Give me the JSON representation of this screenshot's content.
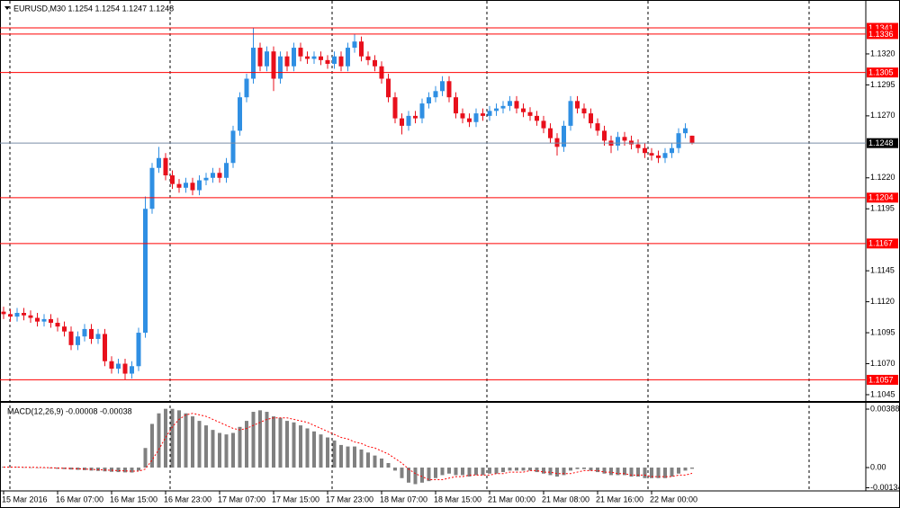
{
  "chart_data": [
    {
      "type": "candlestick",
      "title": "EURUSD,M30  1.1254 1.1254 1.1247 1.1248",
      "categories": [
        "15 Mar 2016",
        null,
        null,
        null,
        null,
        null,
        null,
        null,
        "16 Mar 07:00",
        null,
        null,
        null,
        null,
        null,
        null,
        null,
        "16 Mar 15:00",
        null,
        null,
        null,
        null,
        null,
        null,
        null,
        "16 Mar 23:00",
        null,
        null,
        null,
        null,
        null,
        null,
        null,
        "17 Mar 07:00",
        null,
        null,
        null,
        null,
        null,
        null,
        null,
        "17 Mar 15:00",
        null,
        null,
        null,
        null,
        null,
        null,
        null,
        "17 Mar 23:00",
        null,
        null,
        null,
        null,
        null,
        null,
        null,
        "18 Mar 07:00",
        null,
        null,
        null,
        null,
        null,
        null,
        null,
        "18 Mar 15:00",
        null,
        null,
        null,
        null,
        null,
        null,
        null,
        "21 Mar 00:00",
        null,
        null,
        null,
        null,
        null,
        null,
        null,
        "21 Mar 08:00",
        null,
        null,
        null,
        null,
        null,
        null,
        null,
        "21 Mar 16:00",
        null,
        null,
        null,
        null,
        null,
        null,
        null,
        "22 Mar 00:00",
        null,
        null,
        null,
        null,
        null,
        null
      ],
      "open": [
        1.1112,
        1.111,
        1.1108,
        1.1111,
        1.1109,
        1.1107,
        1.1104,
        1.1106,
        1.1103,
        1.11,
        1.1096,
        1.1085,
        1.1092,
        1.1098,
        1.109,
        1.1094,
        1.1072,
        1.1066,
        1.107,
        1.1062,
        1.1068,
        1.1095,
        1.1195,
        1.1228,
        1.1236,
        1.1222,
        1.1215,
        1.1212,
        1.1216,
        1.121,
        1.1218,
        1.122,
        1.1224,
        1.122,
        1.1232,
        1.1258,
        1.1285,
        1.13,
        1.1325,
        1.131,
        1.1322,
        1.13,
        1.1318,
        1.131,
        1.1325,
        1.1318,
        1.1316,
        1.1318,
        1.1315,
        1.1312,
        1.1318,
        1.131,
        1.1325,
        1.133,
        1.1318,
        1.1315,
        1.131,
        1.13,
        1.1285,
        1.1268,
        1.1262,
        1.127,
        1.1268,
        1.128,
        1.1285,
        1.129,
        1.1298,
        1.1285,
        1.1272,
        1.1268,
        1.1265,
        1.1272,
        1.127,
        1.1274,
        1.1276,
        1.1278,
        1.1282,
        1.1276,
        1.1273,
        1.127,
        1.1266,
        1.126,
        1.1252,
        1.1245,
        1.1262,
        1.1282,
        1.1276,
        1.1272,
        1.1264,
        1.1258,
        1.125,
        1.1246,
        1.1253,
        1.125,
        1.1247,
        1.1244,
        1.124,
        1.1238,
        1.1236,
        1.124,
        1.1244,
        1.1256,
        1.1254
      ],
      "high": [
        1.1116,
        1.1114,
        1.1115,
        1.1115,
        1.1113,
        1.1111,
        1.111,
        1.111,
        1.1107,
        1.1104,
        1.11,
        1.1096,
        1.1102,
        1.1102,
        1.1098,
        1.1098,
        1.1076,
        1.1074,
        1.1074,
        1.1072,
        1.1099,
        1.1205,
        1.1232,
        1.1245,
        1.124,
        1.1226,
        1.1219,
        1.122,
        1.122,
        1.1222,
        1.1224,
        1.1228,
        1.1228,
        1.1236,
        1.1262,
        1.1289,
        1.1304,
        1.1341,
        1.1329,
        1.1326,
        1.1326,
        1.1322,
        1.1322,
        1.1329,
        1.1329,
        1.1322,
        1.1322,
        1.1322,
        1.1319,
        1.1322,
        1.1322,
        1.1329,
        1.1336,
        1.1334,
        1.1322,
        1.1319,
        1.1314,
        1.1304,
        1.1289,
        1.1272,
        1.1274,
        1.1274,
        1.1284,
        1.1289,
        1.1294,
        1.1302,
        1.1302,
        1.1289,
        1.1276,
        1.1272,
        1.1276,
        1.1276,
        1.1278,
        1.128,
        1.1282,
        1.1286,
        1.1286,
        1.128,
        1.1277,
        1.1274,
        1.127,
        1.1264,
        1.1256,
        1.1266,
        1.1286,
        1.1286,
        1.128,
        1.1276,
        1.1268,
        1.1262,
        1.1254,
        1.1257,
        1.1257,
        1.1254,
        1.1251,
        1.1248,
        1.1244,
        1.1242,
        1.1244,
        1.1248,
        1.126,
        1.1264,
        1.1254
      ],
      "low": [
        1.1106,
        1.1104,
        1.1104,
        1.1105,
        1.1103,
        1.11,
        1.11,
        1.1099,
        1.1096,
        1.1092,
        1.1081,
        1.1081,
        1.1088,
        1.1086,
        1.1086,
        1.1068,
        1.1062,
        1.1062,
        1.1057,
        1.1058,
        1.1064,
        1.1091,
        1.1191,
        1.1224,
        1.1218,
        1.1211,
        1.1208,
        1.1208,
        1.1206,
        1.1206,
        1.1214,
        1.1216,
        1.1216,
        1.1216,
        1.1228,
        1.1254,
        1.1281,
        1.1296,
        1.1306,
        1.1306,
        1.129,
        1.1296,
        1.1306,
        1.1306,
        1.1314,
        1.1312,
        1.1312,
        1.1311,
        1.1308,
        1.1308,
        1.1306,
        1.1306,
        1.1321,
        1.1314,
        1.1311,
        1.1306,
        1.1296,
        1.1281,
        1.1264,
        1.1255,
        1.1258,
        1.1264,
        1.1264,
        1.1276,
        1.1281,
        1.1286,
        1.1281,
        1.1268,
        1.1264,
        1.1261,
        1.1261,
        1.1266,
        1.1266,
        1.127,
        1.1272,
        1.1274,
        1.1272,
        1.1269,
        1.1266,
        1.1262,
        1.1256,
        1.1248,
        1.1238,
        1.1241,
        1.1258,
        1.1272,
        1.1268,
        1.126,
        1.1254,
        1.1246,
        1.124,
        1.1242,
        1.1246,
        1.1243,
        1.124,
        1.1236,
        1.1234,
        1.1232,
        1.1232,
        1.1236,
        1.124,
        1.1252,
        1.1247
      ],
      "close": [
        1.111,
        1.1108,
        1.1111,
        1.1109,
        1.1107,
        1.1104,
        1.1106,
        1.1103,
        1.11,
        1.1096,
        1.1085,
        1.1092,
        1.1098,
        1.109,
        1.1094,
        1.1072,
        1.1066,
        1.107,
        1.1062,
        1.1068,
        1.1095,
        1.1195,
        1.1228,
        1.1236,
        1.1222,
        1.1215,
        1.1212,
        1.1216,
        1.121,
        1.1218,
        1.122,
        1.1224,
        1.122,
        1.1232,
        1.1258,
        1.1285,
        1.13,
        1.1325,
        1.131,
        1.1322,
        1.13,
        1.1318,
        1.131,
        1.1325,
        1.1318,
        1.1316,
        1.1318,
        1.1315,
        1.1312,
        1.1318,
        1.131,
        1.1325,
        1.133,
        1.1318,
        1.1315,
        1.131,
        1.13,
        1.1285,
        1.1268,
        1.1262,
        1.127,
        1.1268,
        1.128,
        1.1285,
        1.129,
        1.1298,
        1.1285,
        1.1272,
        1.1268,
        1.1265,
        1.1272,
        1.127,
        1.1274,
        1.1276,
        1.1278,
        1.1282,
        1.1276,
        1.1273,
        1.127,
        1.1266,
        1.126,
        1.1252,
        1.1245,
        1.1262,
        1.1282,
        1.1276,
        1.1272,
        1.1264,
        1.1258,
        1.125,
        1.1246,
        1.1253,
        1.125,
        1.1247,
        1.1244,
        1.124,
        1.1238,
        1.1236,
        1.124,
        1.1244,
        1.1256,
        1.126,
        1.1248
      ],
      "up_color": "#2f8fe3",
      "down_color": "#e8101c",
      "ylim": [
        1.10399,
        1.13635
      ],
      "yticks": [
        {
          "value": 1.132,
          "label": "1.1320"
        },
        {
          "value": 1.1295,
          "label": "1.1295"
        },
        {
          "value": 1.127,
          "label": "1.1270"
        },
        {
          "value": 1.122,
          "label": "1.1220"
        },
        {
          "value": 1.1195,
          "label": "1.1195"
        },
        {
          "value": 1.1145,
          "label": "1.1145"
        },
        {
          "value": 1.112,
          "label": "1.1120"
        },
        {
          "value": 1.1095,
          "label": "1.1095"
        },
        {
          "value": 1.107,
          "label": "1.1070"
        },
        {
          "value": 1.1045,
          "label": "1.1045"
        }
      ],
      "levels": [
        1.1341,
        1.1336,
        1.1305,
        1.1204,
        1.1167,
        1.1057
      ],
      "level_color": "#ff0000",
      "last_price": 1.1248,
      "last_price_color": "#7a8ea8"
    },
    {
      "type": "macd",
      "title": "MACD(12,26,9) -0.00008 -0.00038",
      "values": [
        5e-05,
        4e-05,
        3e-05,
        2e-05,
        1e-05,
        0,
        -3e-05,
        -5e-05,
        -8e-05,
        -0.0001,
        -0.00013,
        -0.00015,
        -0.00017,
        -0.0002,
        -0.00022,
        -0.00025,
        -0.00028,
        -0.0003,
        -0.00032,
        -0.00033,
        -0.0002,
        0.0013,
        0.0029,
        0.0036,
        0.0039,
        0.0039,
        0.0038,
        0.0036,
        0.0034,
        0.0031,
        0.0028,
        0.0025,
        0.0023,
        0.0022,
        0.0023,
        0.0027,
        0.0031,
        0.0037,
        0.0038,
        0.0037,
        0.0034,
        0.0033,
        0.0031,
        0.003,
        0.0028,
        0.0026,
        0.0024,
        0.0022,
        0.002,
        0.0018,
        0.0015,
        0.0014,
        0.0014,
        0.0012,
        0.001,
        0.0008,
        0.0006,
        0.0003,
        -0.0002,
        -0.0007,
        -0.001,
        -0.0011,
        -0.001,
        -0.0009,
        -0.0007,
        -0.0005,
        -0.0004,
        -0.0005,
        -0.0005,
        -0.0006,
        -0.0005,
        -0.0005,
        -0.0004,
        -0.0004,
        -0.0003,
        -0.0002,
        -0.0002,
        -0.0002,
        -0.0002,
        -0.0003,
        -0.0004,
        -0.0005,
        -0.0006,
        -0.0005,
        -0.0002,
        -0.0001,
        -0.0001,
        -0.0002,
        -0.0003,
        -0.0004,
        -0.0005,
        -0.0005,
        -0.0005,
        -0.0006,
        -0.0006,
        -0.0007,
        -0.0007,
        -0.0007,
        -0.0007,
        -0.0006,
        -0.0004,
        -0.0002,
        -8e-05
      ],
      "signal": [
        3e-05,
        3e-05,
        3e-05,
        2e-05,
        2e-05,
        1e-05,
        0,
        -1e-05,
        -3e-05,
        -5e-05,
        -6e-05,
        -8e-05,
        -0.0001,
        -0.00012,
        -0.00014,
        -0.00016,
        -0.00018,
        -0.0002,
        -0.00022,
        -0.00024,
        -0.00024,
        -0.0001,
        0.0005,
        0.0012,
        0.002,
        0.0027,
        0.0032,
        0.0035,
        0.0036,
        0.0035,
        0.0034,
        0.0032,
        0.003,
        0.0028,
        0.0026,
        0.0025,
        0.0026,
        0.0028,
        0.003,
        0.0032,
        0.0033,
        0.0033,
        0.0033,
        0.0032,
        0.0031,
        0.003,
        0.0028,
        0.0026,
        0.0024,
        0.0022,
        0.002,
        0.0019,
        0.0017,
        0.0016,
        0.0014,
        0.0013,
        0.0011,
        0.0009,
        0.0006,
        0.0003,
        -0.0001,
        -0.0004,
        -0.0006,
        -0.0008,
        -0.0008,
        -0.0008,
        -0.0007,
        -0.0006,
        -0.0006,
        -0.0005,
        -0.0005,
        -0.0005,
        -0.0005,
        -0.0004,
        -0.0004,
        -0.0003,
        -0.0003,
        -0.0003,
        -0.0002,
        -0.0002,
        -0.0003,
        -0.0003,
        -0.0004,
        -0.0004,
        -0.0004,
        -0.0003,
        -0.0002,
        -0.0002,
        -0.0002,
        -0.0003,
        -0.0003,
        -0.0004,
        -0.0004,
        -0.0005,
        -0.0005,
        -0.0005,
        -0.0006,
        -0.0006,
        -0.0006,
        -0.0006,
        -0.0005,
        -0.0005,
        -0.00038
      ],
      "color": "#808080",
      "signal_color": "#ff0000",
      "ylim": [
        -0.00149,
        0.00424
      ],
      "yticks": [
        0.00388,
        {
          "value": 0,
          "label": "0.00"
        },
        -0.00134
      ]
    }
  ]
}
